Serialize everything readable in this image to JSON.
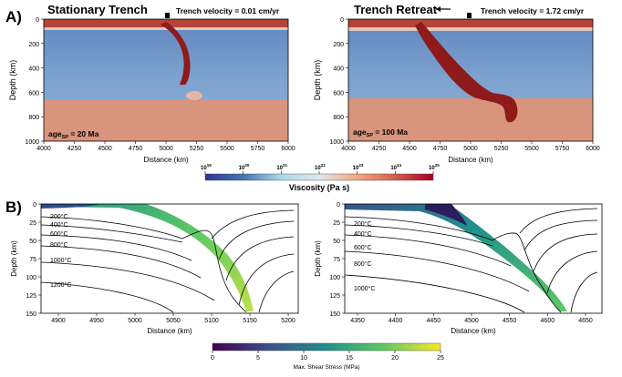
{
  "panel_labels": {
    "a": "A)",
    "b": "B)"
  },
  "panelA": {
    "left": {
      "title": "Stationary Trench",
      "velocity_label": "Trench velocity = 0.01 cm/yr",
      "age_label": "age",
      "age_sub": "SP",
      "age_value": " = 20 Ma"
    },
    "right": {
      "title": "Trench Retreat",
      "velocity_label": "Trench velocity = 1.72 cm/yr",
      "age_label": "age",
      "age_sub": "SP",
      "age_value": " = 100 Ma"
    },
    "ylabel": "Depth (km)",
    "xlabel": "Distance (km)",
    "yticks": [
      "0",
      "200",
      "400",
      "600",
      "800",
      "1000"
    ],
    "xticks": [
      "4000",
      "4250",
      "4500",
      "4750",
      "5000",
      "5250",
      "5500",
      "5750",
      "6000"
    ]
  },
  "viscosity_colorbar": {
    "label": "Viscosity (Pa s)",
    "ticks": [
      {
        "base": "10",
        "exp": "19"
      },
      {
        "base": "10",
        "exp": "20"
      },
      {
        "base": "10",
        "exp": "21"
      },
      {
        "base": "10",
        "exp": "22"
      },
      {
        "base": "10",
        "exp": "23"
      },
      {
        "base": "10",
        "exp": "24"
      },
      {
        "base": "10",
        "exp": "25"
      }
    ],
    "colors": [
      "#313695",
      "#4575b4",
      "#abd9e9",
      "#e0e7ec",
      "#f4a582",
      "#d6604d",
      "#a50026"
    ]
  },
  "panelB": {
    "ylabel": "Depth (km)",
    "xlabel": "Distance (km)",
    "yticks": [
      "0",
      "25",
      "50",
      "75",
      "100",
      "125",
      "150"
    ],
    "left": {
      "xticks": [
        "4900",
        "4950",
        "5000",
        "5050",
        "5100",
        "5150",
        "5200"
      ],
      "isotherms": [
        "200°C",
        "400°C",
        "600°C",
        "800°C",
        "1000°C",
        "1200°C"
      ]
    },
    "right": {
      "xticks": [
        "4350",
        "4400",
        "4450",
        "4500",
        "4550",
        "4600",
        "4650"
      ],
      "isotherms": [
        "200°C",
        "400°C",
        "600°C",
        "800°C",
        "1000°C"
      ]
    }
  },
  "stress_colorbar": {
    "label": "Max. Shear Stress (MPa)",
    "ticks": [
      "0",
      "5",
      "10",
      "15",
      "20",
      "25"
    ],
    "colors": [
      "#440154",
      "#3b528b",
      "#21918c",
      "#5ec962",
      "#fde725"
    ]
  }
}
